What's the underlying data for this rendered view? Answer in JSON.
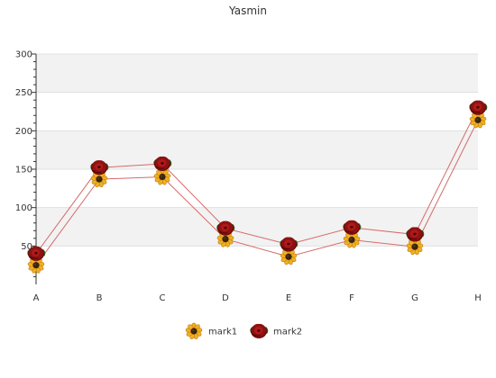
{
  "chart_data": {
    "type": "line",
    "title": "Yasmin",
    "categories": [
      "A",
      "B",
      "C",
      "D",
      "E",
      "F",
      "G",
      "H"
    ],
    "series": [
      {
        "name": "mark1",
        "values": [
          25,
          137,
          140,
          59,
          36,
          58,
          49,
          214
        ],
        "color": "#d46a6a",
        "marker": "sunflower-icon"
      },
      {
        "name": "mark2",
        "values": [
          40,
          152,
          157,
          73,
          52,
          74,
          65,
          230
        ],
        "color": "#d46a6a",
        "marker": "red-rose-icon"
      }
    ],
    "ylim": [
      0,
      300
    ],
    "yticks": [
      50,
      100,
      150,
      200,
      250,
      300
    ],
    "grid": true,
    "legend_position": "bottom"
  }
}
